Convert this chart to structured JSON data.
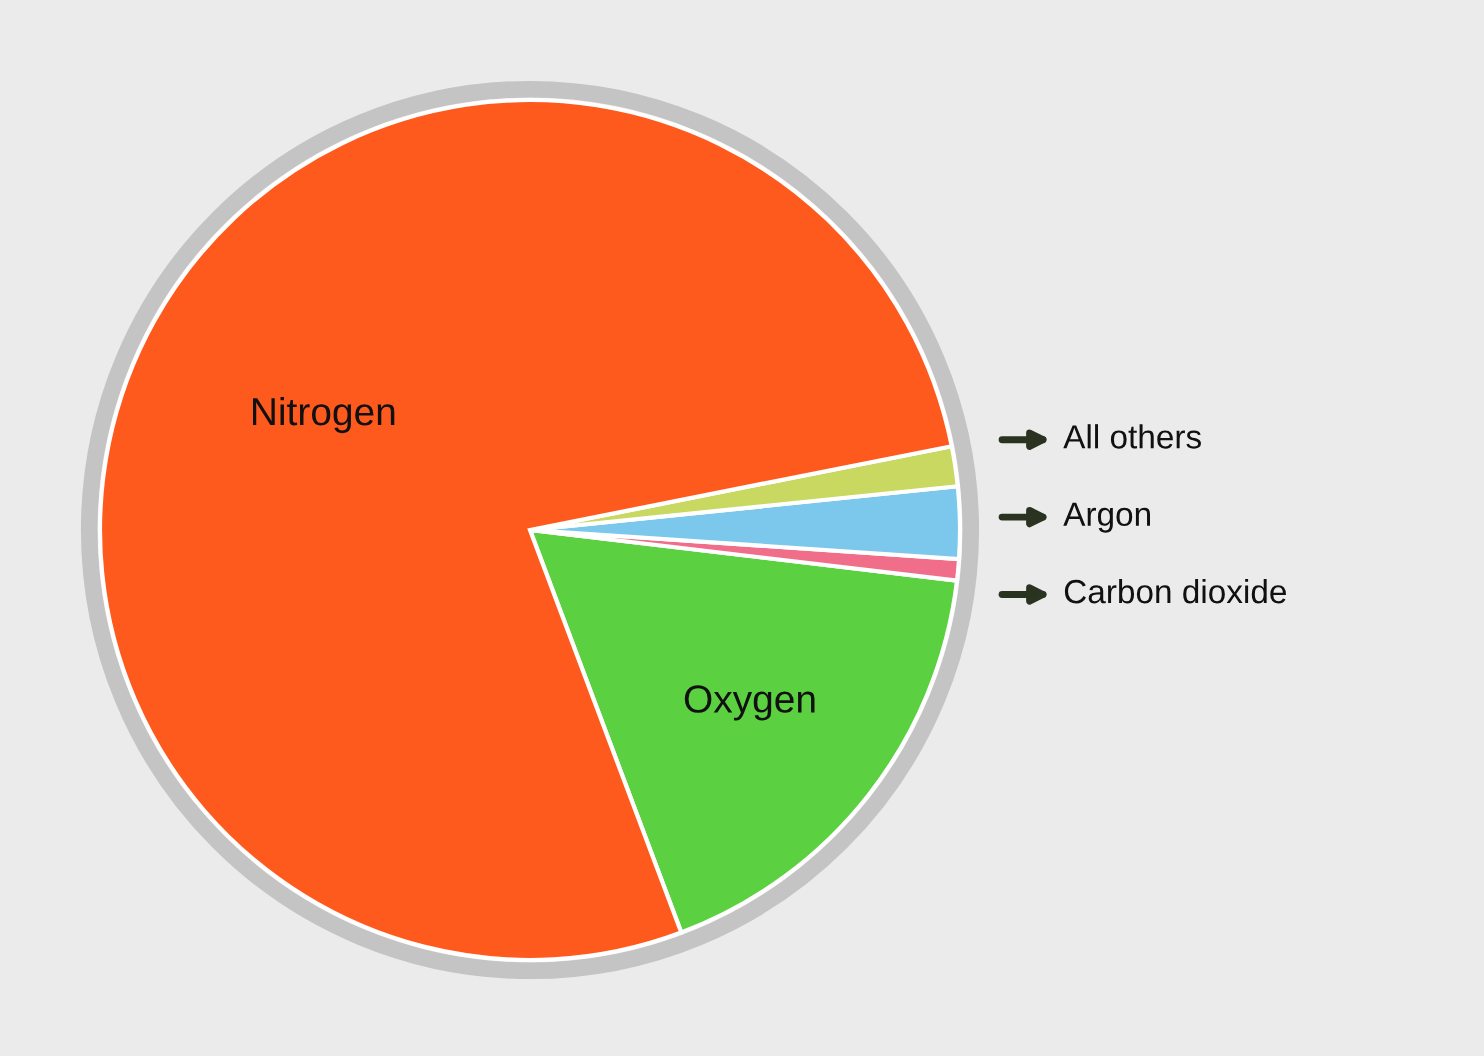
{
  "chart_data": {
    "type": "pie",
    "categories": [
      "Oxygen",
      "Carbon dioxide",
      "Argon",
      "All others",
      "Nitrogen"
    ],
    "values": [
      17.4,
      0.8,
      2.7,
      1.5,
      77.6
    ],
    "colors": [
      "#5bd040",
      "#f06e8a",
      "#7cc8ec",
      "#c8d860",
      "#ff5a1e"
    ]
  }
}
